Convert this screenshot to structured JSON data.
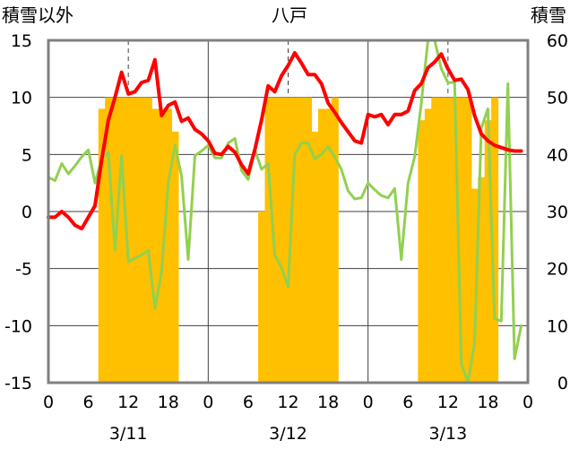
{
  "chart_data": {
    "type": "bar+line",
    "title": "八戸",
    "y_left_label": "積雪以外",
    "y_right_label": "積雪",
    "y_left_range": [
      -15,
      15
    ],
    "y_left_ticks": [
      "15",
      "10",
      "5",
      "0",
      "-5",
      "-10",
      "-15"
    ],
    "y_right_range": [
      0,
      60
    ],
    "y_right_ticks": [
      "60",
      "50",
      "40",
      "30",
      "20",
      "10",
      "0"
    ],
    "x_range_hours": [
      0,
      72
    ],
    "x_tick_labels": [
      "0",
      "6",
      "12",
      "18",
      "0",
      "6",
      "12",
      "18",
      "0",
      "6",
      "12",
      "18",
      "0"
    ],
    "date_labels": [
      "3/11",
      "3/12",
      "3/13"
    ],
    "colors": {
      "bars": "#FFC000",
      "red_line": "#FF0000",
      "green_line": "#92D050",
      "purple_line": "#7030A0",
      "frame": "#808080",
      "grid": "#404040"
    },
    "bars": {
      "axis": "right",
      "start_hour": 0,
      "values": [
        0,
        0,
        0,
        0,
        0,
        0,
        0,
        0,
        0,
        0,
        0,
        0,
        0,
        0,
        0,
        0,
        0,
        0,
        0,
        0,
        0,
        0,
        0,
        0,
        0,
        0,
        0,
        0,
        0,
        0,
        0,
        0,
        0,
        0,
        0,
        0,
        0,
        0,
        0,
        0,
        0,
        0,
        0,
        0,
        0,
        0,
        0,
        0,
        0,
        0,
        0,
        0,
        0,
        0,
        0,
        0,
        0,
        0,
        0,
        0,
        0,
        0,
        0,
        0,
        0,
        0,
        0,
        0,
        0,
        0,
        0,
        0
      ],
      "comment_free": true
    },
    "snow_depth": {
      "axis": "right",
      "hours": [
        8,
        9,
        10,
        11,
        12,
        13,
        14,
        15,
        16,
        17,
        18,
        19,
        32,
        33,
        34,
        35,
        36,
        37,
        38,
        39,
        40,
        41,
        42,
        43,
        56,
        57,
        58,
        59,
        60,
        61,
        62,
        63,
        64,
        65,
        66,
        67
      ],
      "values": [
        48,
        50,
        50,
        50,
        50,
        50,
        50,
        50,
        48,
        48,
        48,
        44,
        30,
        50,
        50,
        50,
        50,
        50,
        50,
        50,
        44,
        48,
        48,
        50,
        46,
        48,
        50,
        50,
        50,
        50,
        50,
        50,
        34,
        36,
        46,
        50
      ]
    },
    "red_series": {
      "axis": "left",
      "hours": [
        0,
        1,
        2,
        3,
        4,
        5,
        6,
        7,
        8,
        9,
        10,
        11,
        12,
        13,
        14,
        15,
        16,
        17,
        18,
        19,
        20,
        21,
        22,
        23,
        24,
        25,
        26,
        27,
        28,
        29,
        30,
        31,
        32,
        33,
        34,
        35,
        36,
        37,
        38,
        39,
        40,
        41,
        42,
        43,
        44,
        45,
        46,
        47,
        48,
        49,
        50,
        51,
        52,
        53,
        54,
        55,
        56,
        57,
        58,
        59,
        60,
        61,
        62,
        63,
        64,
        65,
        66,
        67,
        68,
        69,
        70,
        71
      ],
      "values": [
        -0.5,
        -0.5,
        0,
        -0.5,
        -1.2,
        -1.5,
        -0.5,
        0.5,
        4.5,
        8,
        10,
        12.2,
        10.3,
        10.5,
        11.3,
        11.5,
        13.3,
        8.4,
        9.3,
        9.6,
        7.9,
        8.2,
        7.2,
        6.8,
        6.2,
        5.1,
        5,
        5.7,
        5.2,
        4.1,
        3.3,
        5.4,
        8,
        11,
        10.5,
        11.9,
        12.8,
        13.9,
        13,
        12,
        12,
        11.2,
        9.5,
        8.7,
        7.8,
        7,
        6.2,
        6,
        8.5,
        8.3,
        8.5,
        7.6,
        8.5,
        8.5,
        8.8,
        10.6,
        11.2,
        12.6,
        13.1,
        13.8,
        12.5,
        11.5,
        11.6,
        10.7,
        8.4,
        6.8,
        6.2,
        5.8,
        5.6,
        5.4,
        5.3,
        5.3
      ]
    },
    "green_series": {
      "axis": "left",
      "hours": [
        0,
        1,
        2,
        3,
        4,
        5,
        6,
        7,
        8,
        9,
        10,
        11,
        12,
        13,
        14,
        15,
        16,
        17,
        18,
        19,
        20,
        21,
        22,
        23,
        24,
        25,
        26,
        27,
        28,
        29,
        30,
        31,
        32,
        33,
        34,
        35,
        36,
        37,
        38,
        39,
        40,
        41,
        42,
        43,
        44,
        45,
        46,
        47,
        48,
        49,
        50,
        51,
        52,
        53,
        54,
        55,
        56,
        57,
        58,
        59,
        60,
        61,
        62,
        63,
        64,
        65,
        66,
        67,
        68,
        69,
        70,
        71
      ],
      "values": [
        3,
        2.7,
        4.2,
        3.3,
        4,
        4.8,
        5.4,
        2.5,
        4.6,
        5.2,
        -3.4,
        4.9,
        -4.4,
        -4.1,
        -3.8,
        -3.4,
        -8.5,
        -5.3,
        2.5,
        5.8,
        3.1,
        -4.2,
        4.9,
        5.3,
        5.8,
        4.7,
        4.7,
        6,
        6.4,
        3.6,
        2.8,
        5.4,
        3.7,
        4.2,
        -3.8,
        -4.9,
        -6.6,
        5,
        6,
        6,
        4.6,
        5,
        5.7,
        4.8,
        3.7,
        1.8,
        1.1,
        1.2,
        2.5,
        1.9,
        1.4,
        1.2,
        2,
        -4.2,
        2.5,
        4.8,
        9.5,
        15,
        15,
        12.5,
        11.3,
        11.3,
        -13.3,
        -15,
        -11.5,
        7.3,
        9,
        -9.4,
        -9.6,
        11.2,
        -12.9,
        -10
      ]
    },
    "purple_series": {
      "axis": "left",
      "hours": [
        0,
        71
      ],
      "values": [
        -15,
        -15
      ]
    },
    "grid": "dashed vertical at 12h/36h/60h and solid at 24h/48h; solid horizontal at every 5"
  }
}
